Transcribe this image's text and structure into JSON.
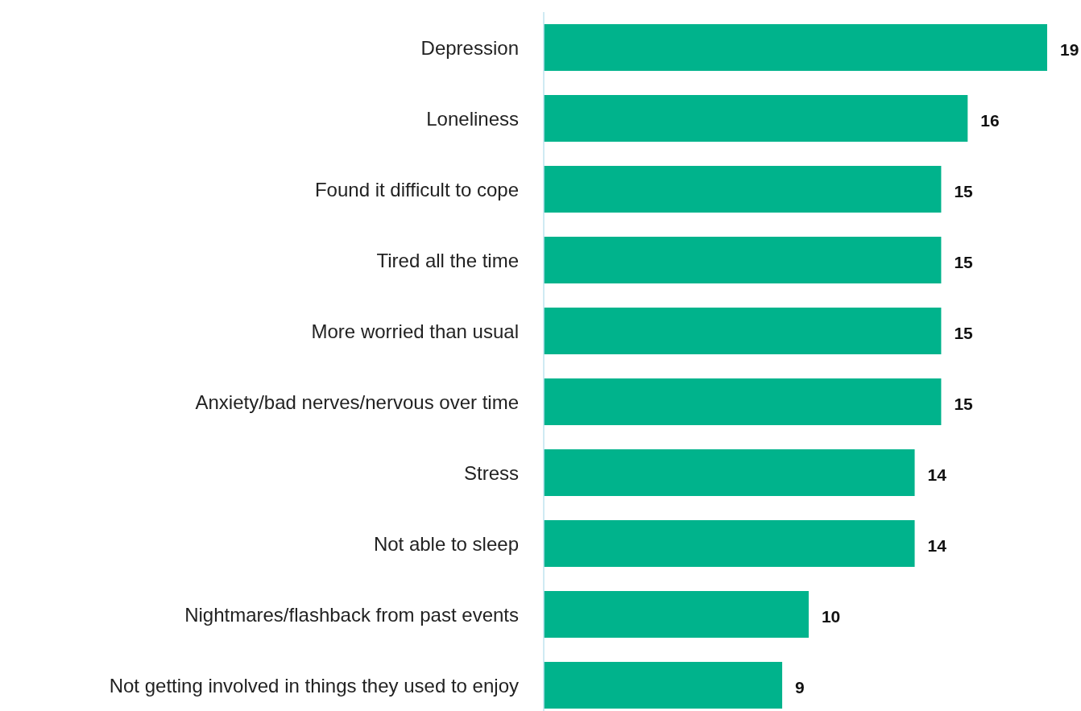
{
  "chart_data": {
    "type": "bar",
    "orientation": "horizontal",
    "categories": [
      "Depression",
      "Loneliness",
      "Found it difficult to cope",
      "Tired all the time",
      "More worried than usual",
      "Anxiety/bad nerves/nervous over time",
      "Stress",
      "Not able to sleep",
      "Nightmares/flashback from past events",
      "Not getting involved in things they used to enjoy"
    ],
    "values": [
      19,
      16,
      15,
      15,
      15,
      15,
      14,
      14,
      10,
      9
    ],
    "color": "#00b38c",
    "data_labels": true
  }
}
